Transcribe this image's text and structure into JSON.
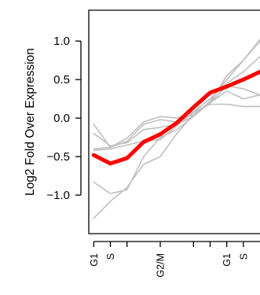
{
  "chart_data": {
    "type": "line",
    "title": "",
    "xlabel": "",
    "ylabel": "Log2 Fold Over Expression",
    "ylim": [
      -1.5,
      1.4
    ],
    "xlim": [
      0.7,
      11
    ],
    "grid": false,
    "legend": "none",
    "x": [
      1,
      2,
      3,
      4,
      5,
      6,
      7,
      8,
      9,
      10,
      11
    ],
    "x_ticks": [
      {
        "x": 1,
        "label": "G1"
      },
      {
        "x": 2,
        "label": "S"
      },
      {
        "x": 3,
        "label": ""
      },
      {
        "x": 5,
        "label": "G2/M"
      },
      {
        "x": 7,
        "label": ""
      },
      {
        "x": 8,
        "label": ""
      },
      {
        "x": 9,
        "label": "G1"
      },
      {
        "x": 10,
        "label": "S"
      }
    ],
    "y_ticks": [
      {
        "v": 1.0,
        "label": "1.0"
      },
      {
        "v": 0.5,
        "label": "0.5"
      },
      {
        "v": 0.0,
        "label": "0.0"
      },
      {
        "v": -0.5,
        "label": "−0.5"
      },
      {
        "v": -1.0,
        "label": "−1.0"
      }
    ],
    "series": [
      {
        "color": "#bfbfbf",
        "width": 1.6,
        "values": [
          -0.08,
          -0.38,
          -0.3,
          -0.08,
          -0.02,
          -0.05,
          0.05,
          0.2,
          0.35,
          0.25,
          0.3
        ]
      },
      {
        "color": "#bfbfbf",
        "width": 1.6,
        "values": [
          -0.4,
          -0.38,
          -0.26,
          -0.05,
          0.02,
          0.0,
          0.08,
          0.25,
          0.45,
          0.6,
          0.8
        ]
      },
      {
        "color": "#bfbfbf",
        "width": 1.6,
        "values": [
          -0.2,
          -0.36,
          -0.32,
          -0.15,
          -0.12,
          -0.08,
          0.02,
          0.22,
          0.5,
          0.75,
          1.0
        ]
      },
      {
        "color": "#bfbfbf",
        "width": 1.6,
        "values": [
          -0.83,
          -0.98,
          -0.93,
          -0.5,
          -0.25,
          -0.15,
          0.02,
          0.2,
          0.55,
          0.75,
          1.02
        ]
      },
      {
        "color": "#bfbfbf",
        "width": 1.6,
        "values": [
          -1.3,
          -1.08,
          -0.9,
          -0.6,
          -0.5,
          -0.2,
          0.05,
          0.2,
          0.42,
          0.38,
          0.3
        ]
      },
      {
        "color": "#bfbfbf",
        "width": 1.6,
        "values": [
          -0.42,
          -0.4,
          -0.35,
          -0.3,
          -0.28,
          -0.1,
          0.08,
          0.18,
          0.18,
          0.15,
          0.15
        ]
      },
      {
        "color": "#ff0000",
        "width": 5,
        "values": [
          -0.48,
          -0.59,
          -0.52,
          -0.31,
          -0.21,
          -0.06,
          0.14,
          0.33,
          0.41,
          0.5,
          0.6
        ]
      }
    ]
  }
}
